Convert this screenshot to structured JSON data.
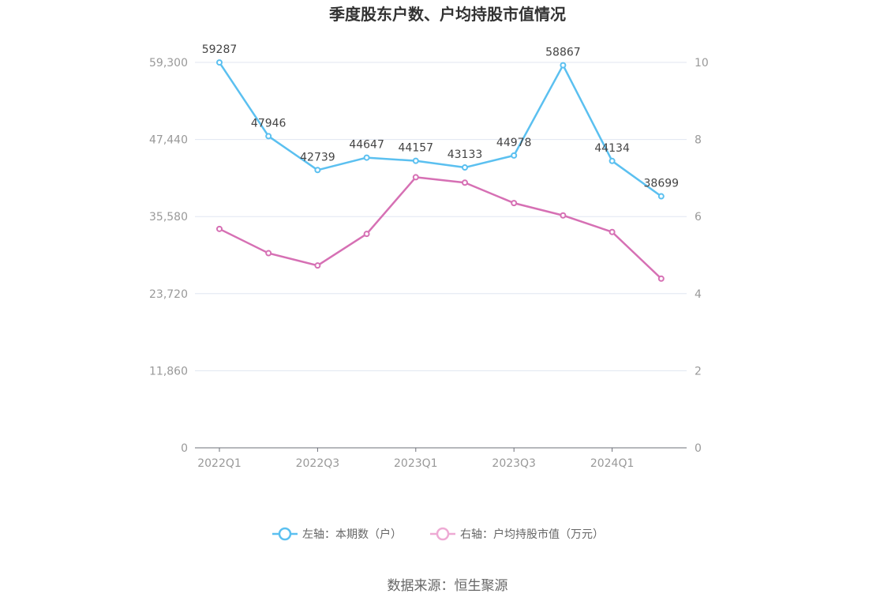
{
  "chart_data": {
    "type": "line",
    "title": "季度股东户数、户均持股市值情况",
    "categories": [
      "2022Q1",
      "2022Q2",
      "2022Q3",
      "2022Q4",
      "2023Q1",
      "2023Q2",
      "2023Q3",
      "2023Q4",
      "2024Q1",
      "2024Q2"
    ],
    "x_tick_labels": [
      "2022Q1",
      "2022Q3",
      "2023Q1",
      "2023Q3",
      "2024Q1"
    ],
    "left_axis": {
      "ylim": [
        0,
        59300
      ],
      "ticks": [
        "0",
        "11,860",
        "23,720",
        "35,580",
        "47,440",
        "59,300"
      ],
      "tick_values": [
        0,
        11860,
        23720,
        35580,
        47440,
        59300
      ]
    },
    "right_axis": {
      "ylim": [
        0,
        10
      ],
      "ticks": [
        "0",
        "2",
        "4",
        "6",
        "8",
        "10"
      ],
      "tick_values": [
        0,
        2,
        4,
        6,
        8,
        10
      ]
    },
    "grid": true,
    "legend_position": "bottom-center",
    "series": [
      {
        "name": "左轴：本期数（户）",
        "axis": "left",
        "color": "#5bc0f0",
        "values": [
          59287,
          47946,
          42739,
          44647,
          44157,
          43133,
          44978,
          58867,
          44134,
          38699
        ],
        "labels": [
          "59287",
          "47946",
          "42739",
          "44647",
          "44157",
          "43133",
          "44978",
          "58867",
          "44134",
          "38699"
        ]
      },
      {
        "name": "右轴：户均持股市值（万元）",
        "axis": "right",
        "color": "#d670b4",
        "values": [
          5.68,
          5.05,
          4.73,
          5.55,
          7.02,
          6.88,
          6.35,
          6.03,
          5.6,
          4.39
        ]
      }
    ]
  },
  "source": "数据来源：恒生聚源"
}
